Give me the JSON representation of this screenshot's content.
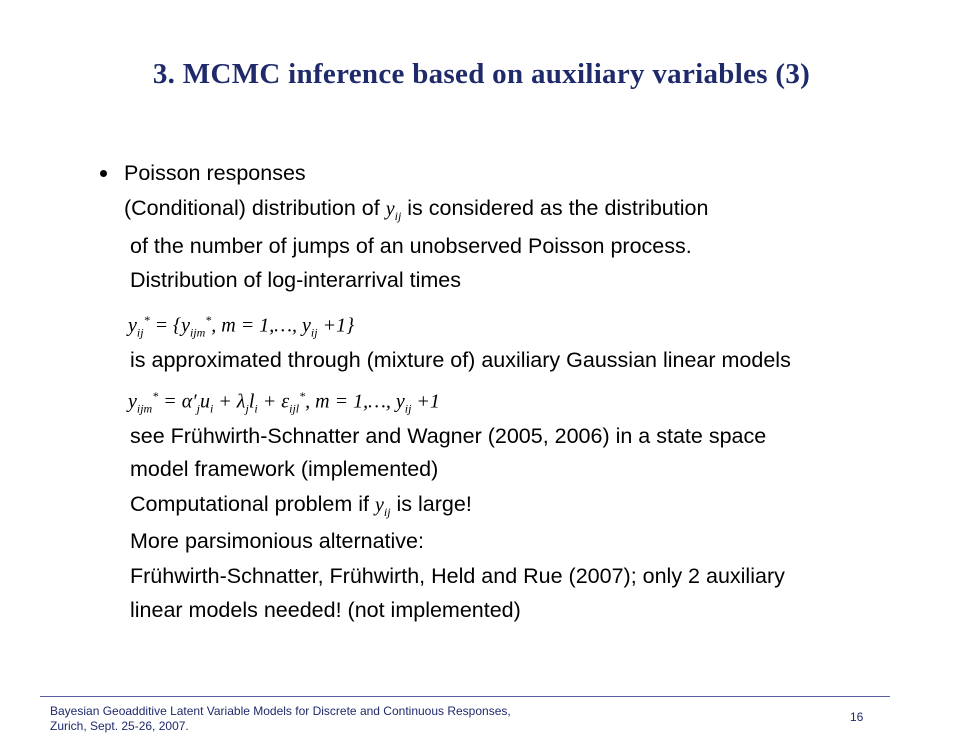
{
  "slide": {
    "title": "3. MCMC inference based on auxiliary variables (3)",
    "bullet_heading": "Poisson responses",
    "line1_prefix": "(Conditional) distribution of ",
    "line1_math": "y",
    "line1_math_sub": "ij",
    "line1_suffix": " is considered as the distribution",
    "line2": "of the number of jumps of an unobserved Poisson process.",
    "line3": "Distribution of log-interarrival times",
    "eq1_lhs": "y",
    "eq1_lhs_sub": "ij",
    "eq1_lhs_sup": "*",
    "eq1_set_open": " = {",
    "eq1_set_y": "y",
    "eq1_set_y_sub": "ijm",
    "eq1_set_y_sup": "*",
    "eq1_rest": ",   m = 1,…,  y",
    "eq1_rest_sub": "ij",
    "eq1_end": " +1}",
    "line4": "is approximated through (mixture of) auxiliary Gaussian linear models",
    "eq2": "y",
    "eq2_sub": "ijm",
    "eq2_sup": "*",
    "eq2_rhs": " = α′",
    "eq2_rhs_sub1": "j",
    "eq2_rhs_u": "u",
    "eq2_rhs_u_sub": "i",
    "eq2_rhs_plus": " + λ",
    "eq2_rhs_lambda_sub": "j",
    "eq2_rhs_l": "l",
    "eq2_rhs_l_sub": "i",
    "eq2_rhs_eps": " + ε",
    "eq2_rhs_eps_sub": "ijl",
    "eq2_rhs_eps_sup": "*",
    "eq2_tail": ",      m = 1,…,  y",
    "eq2_tail_sub": "ij",
    "eq2_tail_end": " +1",
    "line5": "see Frühwirth-Schnatter and Wagner (2005, 2006) in a state space",
    "line6": "model framework (implemented)",
    "line7_prefix": "Computational problem if ",
    "line7_math": "y",
    "line7_math_sub": "ij",
    "line7_suffix": " is large!",
    "line8": "More parsimonious alternative:",
    "line9": "Frühwirth-Schnatter, Frühwirth, Held and Rue (2007); only 2 auxiliary",
    "line10": "linear models needed! (not implemented)"
  },
  "footer": {
    "text": "Bayesian Geoadditive Latent Variable Models for Discrete and Continuous Responses,\nZurich, Sept. 25-26, 2007.",
    "page_number": "16"
  },
  "colors": {
    "title": "#1f2a6b",
    "footer_rule": "#5a5fa3"
  }
}
